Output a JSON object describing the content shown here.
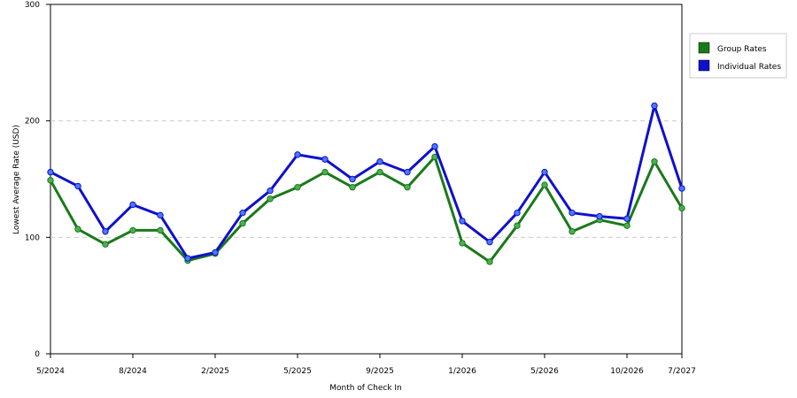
{
  "chart_data": {
    "type": "line",
    "xlabel": "Month of Check In",
    "ylabel": "Lowest Average Rate (USD)",
    "categories": [
      "5/2024",
      null,
      null,
      "8/2024",
      null,
      null,
      "2/2025",
      null,
      null,
      "5/2025",
      null,
      null,
      "9/2025",
      null,
      null,
      "1/2026",
      null,
      null,
      "5/2026",
      null,
      null,
      "10/2026",
      null,
      "7/2027"
    ],
    "series": [
      {
        "name": "Group Rates",
        "color": "#1a7a1a",
        "marker": "#4caf50",
        "values": [
          149,
          107,
          94,
          106,
          106,
          80,
          86,
          112,
          133,
          143,
          156,
          143,
          156,
          143,
          169,
          95,
          79,
          110,
          145,
          105,
          115,
          110,
          165,
          125
        ]
      },
      {
        "name": "Individual Rates",
        "color": "#1010cc",
        "marker": "#4a7aff",
        "values": [
          156,
          144,
          105,
          128,
          119,
          82,
          87,
          121,
          140,
          171,
          167,
          150,
          165,
          156,
          178,
          114,
          96,
          121,
          156,
          121,
          118,
          116,
          213,
          142
        ]
      }
    ],
    "ylim": [
      0,
      300
    ],
    "yticks": [
      0,
      100,
      200,
      300
    ],
    "grid": true
  }
}
